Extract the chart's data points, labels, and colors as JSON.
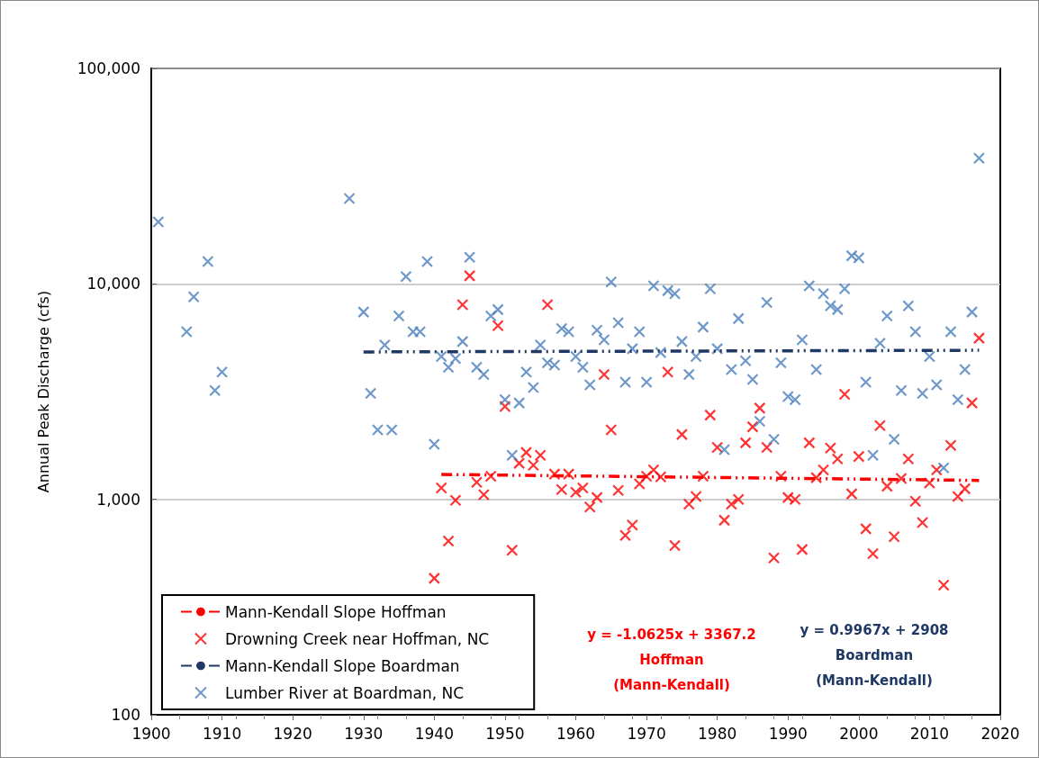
{
  "chart_data": {
    "type": "scatter",
    "ylabel": "Annual Peak Discharge (cfs)",
    "log": "y",
    "grid": "y",
    "legend": "bottom left",
    "marker": "cross",
    "xlim": [
      1900,
      2020
    ],
    "xticks": [
      1900,
      1910,
      1920,
      1930,
      1940,
      1950,
      1960,
      1970,
      1980,
      1990,
      2000,
      2010,
      2020
    ],
    "ylim": [
      100,
      100000
    ],
    "yticks": [
      {
        "value": 100,
        "label": "100"
      },
      {
        "value": 1000,
        "label": "1,000"
      },
      {
        "value": 10000,
        "label": "10,000"
      },
      {
        "value": 100000,
        "label": "100,000"
      }
    ],
    "annotations": [
      "y = -1.0625x + 3367.2\nHoffman\n(Mann-Kendall)",
      "y = 0.9967x + 2908\nBoardman\n(Mann-Kendall)"
    ],
    "series": [
      {
        "name": "Mann-Kendall Slope Hoffman",
        "type": "line",
        "line_style": "dashed",
        "marker": "none",
        "color": "#ff0000",
        "x": [
          1941,
          2017
        ],
        "values": [
          1305,
          1224
        ]
      },
      {
        "name": "Drowning Creek near Hoffman, NC",
        "type": "scatter",
        "color": "#ff0000",
        "x": [
          1940,
          1941,
          1942,
          1943,
          1944,
          1945,
          1946,
          1947,
          1948,
          1949,
          1950,
          1951,
          1952,
          1953,
          1954,
          1955,
          1956,
          1957,
          1958,
          1959,
          1960,
          1961,
          1962,
          1963,
          1964,
          1965,
          1966,
          1967,
          1968,
          1969,
          1970,
          1971,
          1972,
          1973,
          1974,
          1975,
          1976,
          1977,
          1978,
          1979,
          1980,
          1981,
          1982,
          1983,
          1984,
          1985,
          1986,
          1987,
          1988,
          1989,
          1990,
          1991,
          1992,
          1993,
          1994,
          1995,
          1996,
          1997,
          1998,
          1999,
          2000,
          2001,
          2002,
          2003,
          2004,
          2005,
          2006,
          2007,
          2008,
          2009,
          2010,
          2011,
          2012,
          2013,
          2014,
          2015,
          2016,
          2017
        ],
        "values": [
          430,
          1130,
          640,
          990,
          8000,
          10900,
          1200,
          1050,
          1280,
          6400,
          2700,
          580,
          1470,
          1650,
          1440,
          1600,
          8000,
          1310,
          1110,
          1310,
          1080,
          1130,
          920,
          1020,
          3800,
          2100,
          1100,
          680,
          760,
          1180,
          1280,
          1370,
          1270,
          3900,
          610,
          2000,
          950,
          1030,
          1280,
          2460,
          1740,
          800,
          950,
          1000,
          1830,
          2170,
          2650,
          1740,
          535,
          1280,
          1020,
          1000,
          585,
          1830,
          1260,
          1370,
          1730,
          1540,
          3070,
          1060,
          1580,
          730,
          560,
          2200,
          1150,
          670,
          1250,
          1540,
          980,
          780,
          1190,
          1370,
          400,
          1780,
          1030,
          1120,
          2800,
          5600
        ]
      },
      {
        "name": "Mann-Kendall Slope Boardman",
        "type": "line",
        "line_style": "dashed",
        "marker": "none",
        "color": "#1f3864",
        "x": [
          1930,
          2017
        ],
        "values": [
          4832,
          4918
        ]
      },
      {
        "name": "Lumber River at Boardman, NC",
        "type": "scatter",
        "color": "#4a7ebb",
        "x": [
          1901,
          1905,
          1906,
          1908,
          1909,
          1910,
          1928,
          1930,
          1931,
          1932,
          1933,
          1934,
          1935,
          1936,
          1937,
          1938,
          1939,
          1940,
          1941,
          1942,
          1943,
          1944,
          1945,
          1946,
          1947,
          1948,
          1949,
          1950,
          1951,
          1952,
          1953,
          1954,
          1955,
          1956,
          1957,
          1958,
          1959,
          1960,
          1961,
          1962,
          1963,
          1964,
          1965,
          1966,
          1967,
          1968,
          1969,
          1970,
          1971,
          1972,
          1973,
          1974,
          1975,
          1976,
          1977,
          1978,
          1979,
          1980,
          1981,
          1982,
          1983,
          1984,
          1985,
          1986,
          1987,
          1988,
          1989,
          1990,
          1991,
          1992,
          1993,
          1994,
          1995,
          1996,
          1997,
          1998,
          1999,
          2000,
          2001,
          2002,
          2003,
          2004,
          2005,
          2006,
          2007,
          2008,
          2009,
          2010,
          2011,
          2012,
          2013,
          2014,
          2015,
          2016,
          2017
        ],
        "values": [
          19400,
          6000,
          8700,
          12700,
          3200,
          3900,
          24900,
          7400,
          3100,
          2100,
          5200,
          2100,
          7100,
          10800,
          6000,
          6000,
          12700,
          1800,
          4600,
          4100,
          4500,
          5400,
          13300,
          4100,
          3800,
          7100,
          7600,
          2900,
          1600,
          2800,
          3900,
          3300,
          5200,
          4300,
          4200,
          6200,
          6000,
          4600,
          4100,
          3400,
          6100,
          5500,
          10200,
          6600,
          3500,
          5000,
          6000,
          3500,
          9800,
          4800,
          9300,
          9000,
          5400,
          3800,
          4600,
          6300,
          9500,
          5000,
          1700,
          4000,
          6900,
          4400,
          3600,
          2300,
          8200,
          1900,
          4300,
          3000,
          2900,
          5500,
          9800,
          4000,
          9000,
          7900,
          7600,
          9500,
          13500,
          13200,
          3500,
          1600,
          5300,
          7100,
          1900,
          3200,
          7900,
          6000,
          3100,
          4600,
          3400,
          1400,
          6000,
          2900,
          4000,
          7400,
          38300
        ]
      }
    ]
  }
}
